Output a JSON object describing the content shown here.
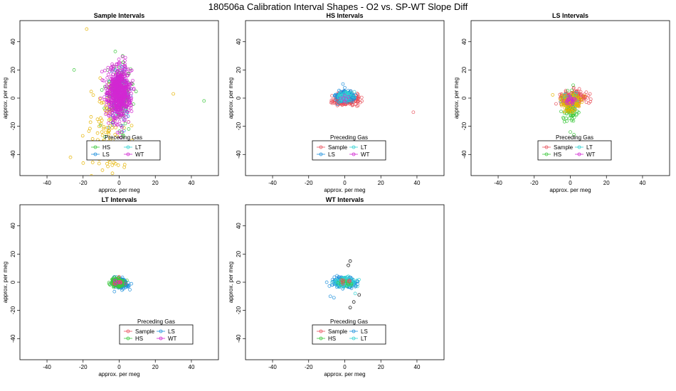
{
  "main_title": "180506a   Calibration Interval Shapes - O2 vs. SP-WT Slope Diff",
  "colors": {
    "Sample": "#E8505B",
    "HS": "#3CC83C",
    "LS": "#1E90DC",
    "LT": "#32D2D2",
    "WT": "#D228D2",
    "outlier_gold": "#E6B400",
    "outlier_black": "#000000"
  },
  "chart_data": [
    {
      "type": "scatter",
      "title": "Sample Intervals",
      "xlabel": "approx. per meg",
      "ylabel": "approx. per meg",
      "xlim": [
        -55,
        55
      ],
      "ylim": [
        -55,
        55
      ],
      "xticks": [
        "-40",
        "-20",
        "0",
        "20",
        "40"
      ],
      "yticks": [
        "40",
        "20",
        "0",
        "-20",
        "-40"
      ],
      "legend_title": "Preceding Gas",
      "legend_entries": [
        "HS",
        "LT",
        "LS",
        "WT"
      ],
      "legend_position": "bottom-center",
      "series": [
        {
          "name": "HS",
          "color_key": "HS",
          "cx": 0,
          "cy": 3,
          "sx": 4,
          "sy": 11,
          "n": 150
        },
        {
          "name": "LS",
          "color_key": "LS",
          "cx": 0,
          "cy": 2,
          "sx": 3,
          "sy": 8,
          "n": 60
        },
        {
          "name": "LT",
          "color_key": "LT",
          "cx": 0,
          "cy": 2,
          "sx": 3,
          "sy": 8,
          "n": 60
        },
        {
          "name": "Outlier",
          "color_key": "outlier_gold",
          "cx": -6,
          "cy": -22,
          "sx": 6,
          "sy": 18,
          "n": 110
        },
        {
          "name": "WT",
          "color_key": "WT",
          "cx": 0,
          "cy": 4,
          "sx": 3.2,
          "sy": 9.5,
          "n": 700
        }
      ],
      "extra_points": [
        {
          "x": -18,
          "y": 49,
          "color_key": "outlier_gold"
        },
        {
          "x": 30,
          "y": 3,
          "color_key": "outlier_gold"
        },
        {
          "x": 47,
          "y": -2,
          "color_key": "HS"
        },
        {
          "x": -25,
          "y": 20,
          "color_key": "HS"
        },
        {
          "x": -27,
          "y": -42,
          "color_key": "outlier_gold"
        }
      ]
    },
    {
      "type": "scatter",
      "title": "HS Intervals",
      "xlabel": "approx. per meg",
      "ylabel": "approx. per meg",
      "xlim": [
        -55,
        55
      ],
      "ylim": [
        -55,
        55
      ],
      "xticks": [
        "-40",
        "-20",
        "0",
        "20",
        "40"
      ],
      "yticks": [
        "40",
        "20",
        "0",
        "-20",
        "-40"
      ],
      "legend_title": "Preceding Gas",
      "legend_entries": [
        "Sample",
        "LT",
        "LS",
        "WT"
      ],
      "legend_position": "bottom-center",
      "series": [
        {
          "name": "Sample",
          "color_key": "Sample",
          "cx": 1,
          "cy": -1,
          "sx": 3.5,
          "sy": 2.2,
          "n": 260
        },
        {
          "name": "LS",
          "color_key": "LS",
          "cx": 0,
          "cy": 1,
          "sx": 2.5,
          "sy": 2,
          "n": 160
        },
        {
          "name": "LT",
          "color_key": "LT",
          "cx": 0,
          "cy": 1,
          "sx": 2.2,
          "sy": 1.8,
          "n": 70
        },
        {
          "name": "WT",
          "color_key": "WT",
          "cx": 0,
          "cy": 0,
          "sx": 1.5,
          "sy": 1.5,
          "n": 6
        }
      ],
      "extra_points": [
        {
          "x": 38,
          "y": -10,
          "color_key": "Sample"
        },
        {
          "x": -1,
          "y": 10,
          "color_key": "LS"
        }
      ]
    },
    {
      "type": "scatter",
      "title": "LS Intervals",
      "xlabel": "approx. per meg",
      "ylabel": "approx. per meg",
      "xlim": [
        -55,
        55
      ],
      "ylim": [
        -55,
        55
      ],
      "xticks": [
        "-40",
        "-20",
        "0",
        "20",
        "40"
      ],
      "yticks": [
        "40",
        "20",
        "0",
        "-20",
        "-40"
      ],
      "legend_title": "Preceding Gas",
      "legend_entries": [
        "Sample",
        "LT",
        "HS",
        "WT"
      ],
      "legend_position": "bottom-center",
      "series": [
        {
          "name": "Sample",
          "color_key": "Sample",
          "cx": 1,
          "cy": 0,
          "sx": 3.5,
          "sy": 2.5,
          "n": 220
        },
        {
          "name": "HS",
          "color_key": "HS",
          "cx": 0,
          "cy": -8,
          "sx": 2.2,
          "sy": 7,
          "n": 90
        },
        {
          "name": "LT",
          "color_key": "LT",
          "cx": 0,
          "cy": -1,
          "sx": 2.5,
          "sy": 2.5,
          "n": 40
        },
        {
          "name": "Gold",
          "color_key": "outlier_gold",
          "cx": 0,
          "cy": -3,
          "sx": 3,
          "sy": 3,
          "n": 120
        },
        {
          "name": "WT",
          "color_key": "WT",
          "cx": 0,
          "cy": -1,
          "sx": 1.8,
          "sy": 1.8,
          "n": 25
        }
      ],
      "extra_points": [
        {
          "x": 2,
          "y": -26,
          "color_key": "HS"
        }
      ]
    },
    {
      "type": "scatter",
      "title": "LT Intervals",
      "xlabel": "approx. per meg",
      "ylabel": "approx. per meg",
      "xlim": [
        -55,
        55
      ],
      "ylim": [
        -55,
        55
      ],
      "xticks": [
        "-40",
        "-20",
        "0",
        "20",
        "40"
      ],
      "yticks": [
        "40",
        "20",
        "0",
        "-20",
        "-40"
      ],
      "legend_title": "Preceding Gas",
      "legend_entries": [
        "Sample",
        "LS",
        "HS",
        "WT"
      ],
      "legend_position": "bottom-right",
      "series": [
        {
          "name": "LS",
          "color_key": "LS",
          "cx": 1,
          "cy": -1,
          "sx": 2,
          "sy": 1.8,
          "n": 180
        },
        {
          "name": "HS",
          "color_key": "HS",
          "cx": -1,
          "cy": 0,
          "sx": 1.8,
          "sy": 1.6,
          "n": 140
        },
        {
          "name": "Sample",
          "color_key": "Sample",
          "cx": 0,
          "cy": 0,
          "sx": 1.5,
          "sy": 1.5,
          "n": 10
        },
        {
          "name": "WT",
          "color_key": "WT",
          "cx": 0,
          "cy": 0,
          "sx": 1.5,
          "sy": 1.5,
          "n": 5
        }
      ],
      "extra_points": []
    },
    {
      "type": "scatter",
      "title": "WT Intervals",
      "xlabel": "approx. per meg",
      "ylabel": "approx. per meg",
      "xlim": [
        -55,
        55
      ],
      "ylim": [
        -55,
        55
      ],
      "xticks": [
        "-40",
        "-20",
        "0",
        "20",
        "40"
      ],
      "yticks": [
        "40",
        "20",
        "0",
        "-20",
        "-40"
      ],
      "legend_title": "Preceding Gas",
      "legend_entries": [
        "Sample",
        "LS",
        "HS",
        "LT"
      ],
      "legend_position": "bottom-center",
      "series": [
        {
          "name": "LS",
          "color_key": "LS",
          "cx": 0,
          "cy": 0,
          "sx": 3.2,
          "sy": 1.8,
          "n": 220
        },
        {
          "name": "LT",
          "color_key": "LT",
          "cx": 0,
          "cy": 0,
          "sx": 3,
          "sy": 1.8,
          "n": 120
        },
        {
          "name": "HS",
          "color_key": "HS",
          "cx": 1,
          "cy": 0,
          "sx": 2,
          "sy": 1.5,
          "n": 15
        },
        {
          "name": "Sample",
          "color_key": "Sample",
          "cx": 0,
          "cy": 0,
          "sx": 1.5,
          "sy": 1.5,
          "n": 8
        }
      ],
      "extra_points": [
        {
          "x": 3,
          "y": 15,
          "color_key": "outlier_black"
        },
        {
          "x": 2,
          "y": 12,
          "color_key": "outlier_black"
        },
        {
          "x": 3,
          "y": -18,
          "color_key": "outlier_black"
        },
        {
          "x": 5,
          "y": -14,
          "color_key": "outlier_black"
        },
        {
          "x": 8,
          "y": -9,
          "color_key": "outlier_black"
        },
        {
          "x": -8,
          "y": -10,
          "color_key": "LS"
        },
        {
          "x": -6,
          "y": -11,
          "color_key": "LS"
        },
        {
          "x": -10,
          "y": 0,
          "color_key": "LS"
        },
        {
          "x": 7,
          "y": -3,
          "color_key": "LT"
        }
      ]
    }
  ]
}
